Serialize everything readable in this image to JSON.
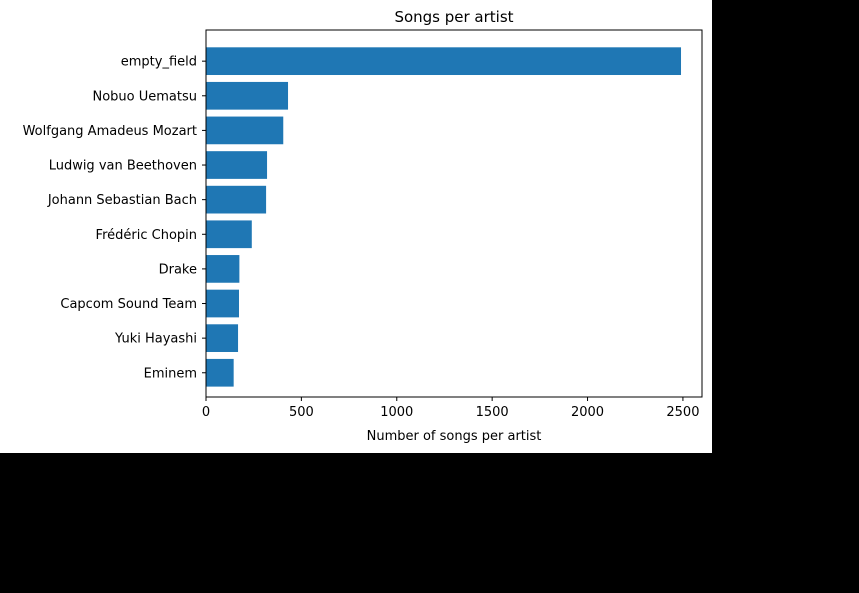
{
  "chart_data": {
    "type": "bar",
    "orientation": "horizontal",
    "title": "Songs per artist",
    "xlabel": "Number of songs per artist",
    "ylabel": "",
    "categories": [
      "empty_field",
      "Nobuo Uematsu",
      "Wolfgang Amadeus Mozart",
      "Ludwig van Beethoven",
      "Johann Sebastian Bach",
      "Frédéric Chopin",
      "Drake",
      "Capcom Sound Team",
      "Yuki Hayashi",
      "Eminem"
    ],
    "values": [
      2490,
      430,
      405,
      320,
      315,
      240,
      175,
      173,
      168,
      145
    ],
    "xlim": [
      0,
      2600
    ],
    "xticks": [
      0,
      500,
      1000,
      1500,
      2000,
      2500
    ],
    "grid": false,
    "legend": "none",
    "bar_color": "#1f77b4"
  }
}
